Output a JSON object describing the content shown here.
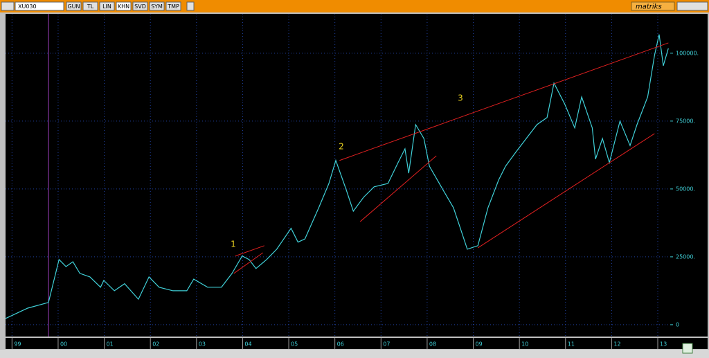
{
  "toolbar": {
    "symbol": "XU030",
    "buttons": [
      "GUN",
      "TL",
      "LIN",
      "KHN",
      "SVD",
      "SYM",
      "TMP"
    ],
    "brand": "matriks"
  },
  "chart_data": {
    "type": "line",
    "x": [
      1998.86,
      1999.34,
      1999.79,
      2000.02,
      2000.17,
      2000.32,
      2000.47,
      2000.69,
      2000.92,
      2000.99,
      2001.22,
      2001.44,
      2001.74,
      2001.97,
      2002.19,
      2002.49,
      2002.79,
      2002.94,
      2003.24,
      2003.54,
      2003.77,
      2003.99,
      2004.14,
      2004.29,
      2004.52,
      2004.74,
      2005.05,
      2005.2,
      2005.35,
      2005.65,
      2005.87,
      2006.02,
      2006.25,
      2006.4,
      2006.62,
      2006.85,
      2007.15,
      2007.37,
      2007.52,
      2007.6,
      2007.75,
      2007.93,
      2008.05,
      2008.35,
      2008.57,
      2008.72,
      2008.87,
      2009.1,
      2009.32,
      2009.55,
      2009.7,
      2009.92,
      2010.15,
      2010.38,
      2010.6,
      2010.75,
      2010.98,
      2011.2,
      2011.35,
      2011.58,
      2011.65,
      2011.8,
      2011.95,
      2012.18,
      2012.4,
      2012.55,
      2012.78,
      2012.93,
      2013.03,
      2013.12,
      2013.23
    ],
    "series": [
      {
        "name": "XU030",
        "color": "#40d0d8",
        "values": [
          2300,
          6100,
          8200,
          24000,
          21400,
          23200,
          18900,
          17600,
          13800,
          16300,
          12500,
          15100,
          9400,
          17600,
          13800,
          12500,
          12500,
          16800,
          13800,
          13800,
          18900,
          25300,
          24000,
          20700,
          24000,
          27800,
          35500,
          30400,
          31600,
          43100,
          52000,
          60500,
          49500,
          41800,
          46900,
          50800,
          52000,
          59700,
          64800,
          55800,
          73700,
          68600,
          58400,
          49500,
          43100,
          35500,
          27800,
          29100,
          43100,
          53300,
          58400,
          63500,
          68600,
          73700,
          76300,
          89000,
          81400,
          72500,
          83900,
          72500,
          61000,
          68600,
          59700,
          75000,
          66000,
          73700,
          83900,
          99200,
          106900,
          95400,
          101800
        ]
      }
    ],
    "trend_lines": [
      {
        "color": "#e02020",
        "x": [
          2003.84,
          2004.47
        ],
        "y": [
          25300,
          29100
        ]
      },
      {
        "color": "#e02020",
        "x": [
          2003.81,
          2004.44
        ],
        "y": [
          18900,
          26500
        ]
      },
      {
        "color": "#e02020",
        "x": [
          2006.1,
          2013.23
        ],
        "y": [
          60500,
          103800
        ]
      },
      {
        "color": "#e02020",
        "x": [
          2006.55,
          2008.2
        ],
        "y": [
          38000,
          62200
        ]
      },
      {
        "color": "#e02020",
        "x": [
          2009.1,
          2012.93
        ],
        "y": [
          28300,
          70400
        ]
      }
    ],
    "annotations": [
      {
        "text": "1",
        "color": "#e8d020"
      },
      {
        "text": "2",
        "color": "#e8d020"
      },
      {
        "text": "3",
        "color": "#e8d020"
      }
    ],
    "xlim": [
      1998.86,
      2013.27
    ],
    "xticks": [
      {
        "value": 1999,
        "label": "99"
      },
      {
        "value": 2000,
        "label": "00"
      },
      {
        "value": 2001,
        "label": "01"
      },
      {
        "value": 2002,
        "label": "02"
      },
      {
        "value": 2003,
        "label": "03"
      },
      {
        "value": 2004,
        "label": "04"
      },
      {
        "value": 2005,
        "label": "05"
      },
      {
        "value": 2006,
        "label": "06"
      },
      {
        "value": 2007,
        "label": "07"
      },
      {
        "value": 2008,
        "label": "08"
      },
      {
        "value": 2009,
        "label": "09"
      },
      {
        "value": 2010,
        "label": "10"
      },
      {
        "value": 2011,
        "label": "11"
      },
      {
        "value": 2012,
        "label": "12"
      },
      {
        "value": 2013,
        "label": "13"
      }
    ],
    "ylim": [
      -4100,
      114500
    ],
    "yticks": [
      0,
      {
        "value": 25000,
        "label": "25000."
      },
      {
        "value": 50000,
        "label": "50000."
      },
      {
        "value": 75000,
        "label": "75000."
      },
      {
        "value": 100000,
        "label": "100000."
      }
    ],
    "grid": true
  }
}
